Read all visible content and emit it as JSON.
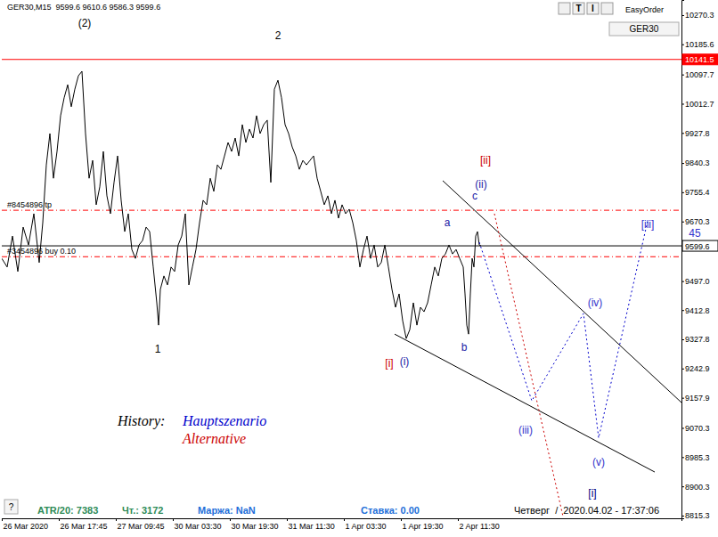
{
  "chart_data": {
    "type": "line",
    "title": "GER30,M15  9599.6 9610.6 9586.3 9599.6",
    "xlim": [
      0,
      763
    ],
    "ylim": [
      8807.5,
      10314.3
    ],
    "grid": false,
    "xticks": [
      {
        "value": 0,
        "label": "26 Mar 2020"
      },
      {
        "value": 64,
        "label": "26 Mar 17:45"
      },
      {
        "value": 128,
        "label": "27 Mar 09:45"
      },
      {
        "value": 192,
        "label": "30 Mar 03:30"
      },
      {
        "value": 256,
        "label": "30 Mar 19:30"
      },
      {
        "value": 320,
        "label": "31 Mar 11:30"
      },
      {
        "value": 384,
        "label": "1 Apr 03:30"
      },
      {
        "value": 448,
        "label": "1 Apr 19:30"
      },
      {
        "value": 512,
        "label": "2 Apr 11:30"
      }
    ],
    "yticks": [
      10270.3,
      10185.6,
      10097.7,
      10012.7,
      9927.8,
      9840.3,
      9755.4,
      9670.3,
      {
        "value": 9497,
        "label": "9497.0"
      },
      9412.8,
      9327.8,
      9242.9,
      9157.9,
      9070.3,
      8985.3,
      8900.3,
      8815.3
    ],
    "x": [
      0,
      6,
      12,
      18,
      24,
      30,
      36,
      42,
      46,
      50,
      54,
      58,
      62,
      66,
      70,
      74,
      78,
      82,
      86,
      90,
      94,
      98,
      102,
      106,
      110,
      114,
      118,
      122,
      126,
      130,
      134,
      138,
      142,
      146,
      150,
      154,
      158,
      162,
      166,
      170,
      174,
      176,
      178,
      182,
      186,
      190,
      194,
      198,
      202,
      206,
      210,
      214,
      218,
      222,
      226,
      230,
      234,
      238,
      242,
      246,
      250,
      254,
      258,
      262,
      266,
      270,
      274,
      278,
      282,
      286,
      290,
      294,
      298,
      302,
      306,
      310,
      314,
      318,
      322,
      326,
      330,
      334,
      338,
      342,
      346,
      350,
      354,
      358,
      362,
      366,
      370,
      374,
      378,
      382,
      386,
      390,
      394,
      398,
      402,
      406,
      410,
      414,
      418,
      422,
      426,
      430,
      434,
      438,
      442,
      446,
      450,
      454,
      458,
      462,
      466,
      470,
      474,
      478,
      482,
      486,
      490,
      494,
      498,
      502,
      506,
      510,
      514,
      518,
      520,
      522,
      524,
      526,
      528,
      530,
      532,
      534,
      536,
      538
    ],
    "series": [
      {
        "color": "#000000",
        "values": [
          9563,
          9538,
          9628,
          9525,
          9654,
          9602,
          9693,
          9551,
          9667,
          9835,
          9926,
          9796,
          9874,
          9978,
          10030,
          10068,
          10004,
          10055,
          10094,
          10107,
          9926,
          9796,
          9848,
          9719,
          9771,
          9874,
          9745,
          9693,
          9784,
          9861,
          9732,
          9641,
          9693,
          9589,
          9563,
          9602,
          9615,
          9654,
          9641,
          9538,
          9434,
          9369,
          9473,
          9512,
          9486,
          9538,
          9525,
          9602,
          9628,
          9693,
          9486,
          9538,
          9589,
          9667,
          9732,
          9719,
          9796,
          9758,
          9835,
          9822,
          9861,
          9900,
          9874,
          9913,
          9861,
          9952,
          9900,
          9939,
          9913,
          9978,
          9926,
          9952,
          9965,
          9784,
          10055,
          10081,
          10030,
          9952,
          9926,
          9887,
          9861,
          9822,
          9848,
          9835,
          9848,
          9861,
          9796,
          9758,
          9719,
          9745,
          9693,
          9732,
          9680,
          9719,
          9693,
          9706,
          9667,
          9615,
          9538,
          9589,
          9628,
          9563,
          9602,
          9538,
          9551,
          9602,
          9538,
          9473,
          9421,
          9460,
          9382,
          9330,
          9356,
          9434,
          9369,
          9421,
          9408,
          9434,
          9486,
          9538,
          9512,
          9563,
          9576,
          9602,
          9576,
          9589,
          9563,
          9538,
          9460,
          9369,
          9343,
          9460,
          9563,
          9538,
          9628,
          9641,
          9602,
          9599.6
        ]
      }
    ],
    "levels": [
      {
        "value": 10141.5,
        "color": "#ff0000",
        "line_style": "solid",
        "marker": "tag"
      },
      {
        "value": 9599.6,
        "color": "#000000",
        "line_style": "solid",
        "marker": "box"
      },
      {
        "value": 9703,
        "label": "#8454896 tp",
        "color": "#ff0000",
        "line_style": "dashdot"
      },
      {
        "value": 9568,
        "label": "#3454896 buy 0.10",
        "color": "#ff0000",
        "line_style": "dashdot"
      }
    ],
    "trendlines": [
      {
        "color": "#000000",
        "x": [
          495,
          763
        ],
        "values": [
          9789,
          9144
        ]
      },
      {
        "color": "#000000",
        "x": [
          441,
          733
        ],
        "values": [
          9343,
          8942
        ]
      }
    ],
    "legend_title": "History:",
    "scenarios": [
      {
        "name": "Hauptszenario",
        "color": "#0000cc",
        "line_style": "dotted",
        "x": [
          536,
          595,
          653,
          670,
          725
        ],
        "values": [
          9610,
          9149,
          9403,
          9041,
          9672
        ]
      },
      {
        "name": "Alternative",
        "color": "#cc0000",
        "line_style": "dotted",
        "x": [
          553,
          630
        ],
        "values": [
          9693,
          8813
        ]
      }
    ],
    "annotations": [
      {
        "text": "(2)",
        "x": 93,
        "y": 10237,
        "color": "#000000"
      },
      {
        "text": "2",
        "x": 310,
        "y": 10200,
        "color": "#000000"
      },
      {
        "text": "1",
        "x": 175,
        "y": 9289,
        "color": "#000000"
      },
      {
        "text": "[i]",
        "x": 435,
        "y": 9248,
        "color": "#cc0000"
      },
      {
        "text": "(i)",
        "x": 452,
        "y": 9253,
        "color": "#1a1aa6"
      },
      {
        "text": "a",
        "x": 500,
        "y": 9657,
        "color": "#1a1aa6"
      },
      {
        "text": "b",
        "x": 519,
        "y": 9294,
        "color": "#1a1aa6"
      },
      {
        "text": "c",
        "x": 531,
        "y": 9734,
        "color": "#1a1aa6"
      },
      {
        "text": "(ii)",
        "x": 538,
        "y": 9768,
        "color": "#1a1aa6"
      },
      {
        "text": "[ii]",
        "x": 543,
        "y": 9838,
        "color": "#cc0000"
      },
      {
        "text": "(iii)",
        "x": 588,
        "y": 9053,
        "color": "#3333cc"
      },
      {
        "text": "(iv)",
        "x": 666,
        "y": 9424,
        "color": "#3333cc"
      },
      {
        "text": "(v)",
        "x": 670,
        "y": 8960,
        "color": "#3333cc"
      },
      {
        "text": "[i]",
        "x": 663,
        "y": 8870,
        "color": "#000080"
      },
      {
        "text": "[iii]",
        "x": 725,
        "y": 9652,
        "color": "#3333cc"
      },
      {
        "text": "45",
        "x": 778,
        "y": 9626,
        "color": "#3333cc"
      }
    ],
    "status_bar": [
      {
        "text": "ATR/20: 7383",
        "color": "#2e8b57"
      },
      {
        "text": "Чт.: 3172",
        "color": "#2e8b57"
      },
      {
        "text": "Маржа: NaN",
        "color": "#1e6fd9"
      },
      {
        "text": "Ставка: 0.00",
        "color": "#1e6fd9"
      },
      {
        "text": "Четверг  /  2020.04.02 - 17:37:06",
        "color": "#000000"
      }
    ],
    "toolbar": [
      "T",
      "I"
    ],
    "order_panel": "EasyOrder",
    "symbol_box": "GER30",
    "help": "?"
  }
}
